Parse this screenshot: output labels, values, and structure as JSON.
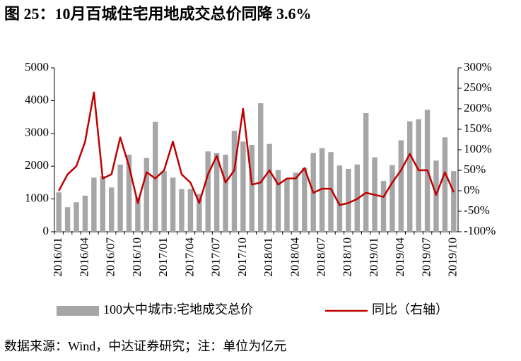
{
  "chart_data": {
    "type": "bar_line",
    "title": "图 25：10月百城住宅用地成交总价同降 3.6%",
    "source": "数据来源：Wind，中达证券研究；注：单位为亿元",
    "categories": [
      "2016/01",
      null,
      null,
      "2016/04",
      null,
      null,
      "2016/07",
      null,
      null,
      "2016/10",
      null,
      null,
      "2017/01",
      null,
      null,
      "2017/04",
      null,
      null,
      "2017/07",
      null,
      null,
      "2017/10",
      null,
      null,
      "2018/01",
      null,
      null,
      "2018/04",
      null,
      null,
      "2018/07",
      null,
      null,
      "2018/10",
      null,
      null,
      "2019/01",
      null,
      null,
      "2019/04",
      null,
      null,
      "2019/07",
      null,
      null,
      "2019/10"
    ],
    "series": [
      {
        "name": "100大中城市:宅地成交总价",
        "type": "bar",
        "color": "#a6a6a6",
        "values": [
          1200,
          750,
          900,
          1100,
          1650,
          1700,
          1350,
          2050,
          2350,
          1050,
          2250,
          3350,
          1850,
          1650,
          1300,
          1300,
          1150,
          2450,
          2400,
          2350,
          3080,
          2750,
          2650,
          3920,
          2680,
          1880,
          1600,
          1800,
          1950,
          2400,
          2550,
          2430,
          2020,
          1920,
          2050,
          3620,
          2270,
          1550,
          2030,
          2790,
          3370,
          3430,
          3720,
          2170,
          2880,
          1850
        ]
      },
      {
        "name": "同比（右轴）",
        "type": "line",
        "axis": "y2",
        "color": "#c00000",
        "values": [
          0,
          40,
          60,
          120,
          240,
          30,
          40,
          130,
          60,
          -30,
          45,
          30,
          50,
          120,
          40,
          20,
          -30,
          40,
          85,
          20,
          50,
          200,
          15,
          20,
          50,
          15,
          30,
          30,
          55,
          -5,
          5,
          5,
          -35,
          -30,
          -20,
          -5,
          -10,
          -15,
          20,
          50,
          90,
          50,
          50,
          -10,
          45,
          -3.6
        ]
      }
    ],
    "ylim": [
      0,
      5000
    ],
    "yticks": [
      0,
      1000,
      2000,
      3000,
      4000,
      5000
    ],
    "y2lim": [
      -100,
      300
    ],
    "y2ticks": [
      {
        "value": -100,
        "label": "-100%"
      },
      {
        "value": -50,
        "label": "-50%"
      },
      {
        "value": 0,
        "label": "0%"
      },
      {
        "value": 50,
        "label": "50%"
      },
      {
        "value": 100,
        "label": "100%"
      },
      {
        "value": 150,
        "label": "150%"
      },
      {
        "value": 200,
        "label": "200%"
      },
      {
        "value": 250,
        "label": "250%"
      },
      {
        "value": 300,
        "label": "300%"
      }
    ]
  }
}
